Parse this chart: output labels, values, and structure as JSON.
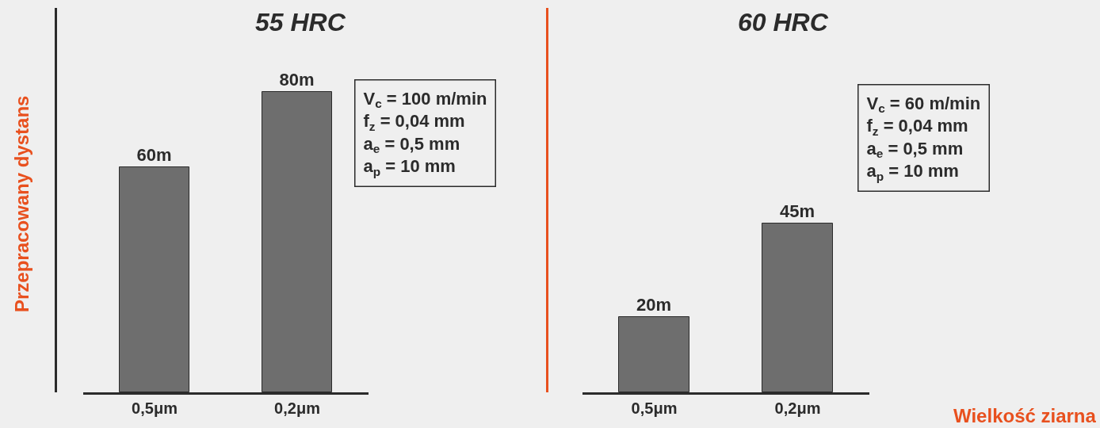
{
  "chart_data": [
    {
      "type": "bar",
      "title": "55 HRC",
      "ylabel": "Przepracowany dystans",
      "categories": [
        "0,5μm",
        "0,2μm"
      ],
      "values": [
        60,
        80
      ],
      "value_labels": [
        "60m",
        "80m"
      ],
      "color": "#6e6e6e",
      "tick_labels": "x",
      "grid": false,
      "annotations": [
        "V$_{c}$ = 100 m/min",
        "f$_{z}$ = 0,04 mm",
        "a$_{e}$ = 0,5 mm",
        "a$_{p}$ = 10 mm"
      ]
    },
    {
      "type": "bar",
      "title": "60 HRC",
      "xlabel": "Wielkość ziarna",
      "categories": [
        "0,5μm",
        "0,2μm"
      ],
      "values": [
        20,
        45
      ],
      "value_labels": [
        "20m",
        "45m"
      ],
      "color": "#6e6e6e",
      "tick_labels": "x",
      "grid": false,
      "annotations": [
        "V$_{c}$ = 60 m/min",
        "f$_{z}$ = 0,04 mm",
        "a$_{e}$ = 0,5 mm",
        "a$_{p}$ = 10 mm"
      ]
    }
  ]
}
